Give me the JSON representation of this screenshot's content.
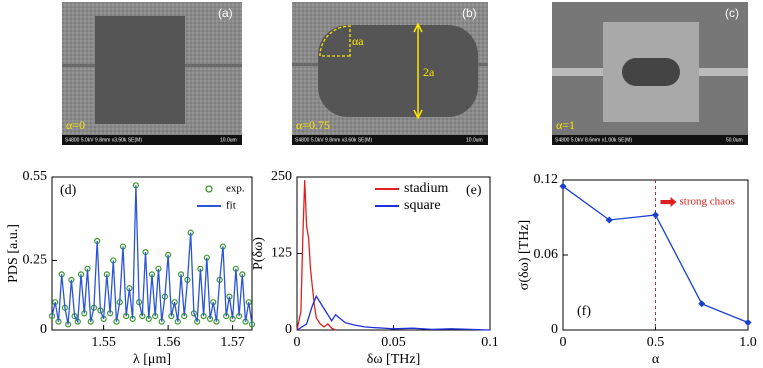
{
  "images": [
    {
      "label": "(a)",
      "caption": "α=0",
      "info": "S4800 5.0kV 9.8mm x3.50k SE(M)",
      "scale": "10.0um"
    },
    {
      "label": "(b)",
      "caption": "α=0.75",
      "info": "S4800 5.0kV 9.8mm x3.60k SE(M)",
      "scale": "10.0um",
      "annotations": [
        "αa",
        "2a"
      ]
    },
    {
      "label": "(c)",
      "caption": "α=1",
      "info": "S4800 5.0kV 8.6mm x1.00k SE(M)",
      "scale": "50.0um"
    }
  ],
  "chart_data": [
    {
      "type": "line",
      "panel_label": "(d)",
      "xlabel": "λ [μm]",
      "ylabel": "PDS [a.u.]",
      "xlim": [
        1.542,
        1.573
      ],
      "xticks": [
        1.55,
        1.56,
        1.57
      ],
      "ylim": [
        0,
        0.55
      ],
      "yticks": [
        0,
        0.25,
        0.55
      ],
      "legend": "upper right",
      "x": [
        1.542,
        1.5425,
        1.543,
        1.5435,
        1.544,
        1.5445,
        1.545,
        1.5455,
        1.546,
        1.5465,
        1.547,
        1.5475,
        1.548,
        1.5485,
        1.549,
        1.5495,
        1.55,
        1.5505,
        1.551,
        1.5515,
        1.552,
        1.5525,
        1.553,
        1.5535,
        1.554,
        1.5545,
        1.555,
        1.5555,
        1.556,
        1.5565,
        1.557,
        1.5575,
        1.558,
        1.5585,
        1.559,
        1.5595,
        1.56,
        1.5605,
        1.561,
        1.5615,
        1.562,
        1.5625,
        1.563,
        1.5635,
        1.564,
        1.5645,
        1.565,
        1.5655,
        1.566,
        1.5665,
        1.567,
        1.5675,
        1.568,
        1.5685,
        1.569,
        1.5695,
        1.57,
        1.5705,
        1.571,
        1.5715,
        1.572,
        1.5725,
        1.573
      ],
      "series": [
        {
          "name": "exp.",
          "color": "#3a9a2a",
          "mode": "markers",
          "values": [
            0.05,
            0.1,
            0.03,
            0.2,
            0.08,
            0.02,
            0.18,
            0.05,
            0.03,
            0.2,
            0.06,
            0.22,
            0.03,
            0.08,
            0.32,
            0.07,
            0.04,
            0.2,
            0.06,
            0.25,
            0.03,
            0.1,
            0.3,
            0.05,
            0.15,
            0.04,
            0.52,
            0.1,
            0.05,
            0.28,
            0.04,
            0.2,
            0.05,
            0.22,
            0.03,
            0.12,
            0.27,
            0.05,
            0.1,
            0.03,
            0.2,
            0.05,
            0.18,
            0.35,
            0.06,
            0.03,
            0.22,
            0.05,
            0.26,
            0.04,
            0.1,
            0.03,
            0.18,
            0.3,
            0.05,
            0.12,
            0.04,
            0.22,
            0.05,
            0.2,
            0.03,
            0.1,
            0.02
          ]
        },
        {
          "name": "fit",
          "color": "#2b55d6",
          "mode": "lines",
          "values": [
            0.05,
            0.1,
            0.03,
            0.2,
            0.08,
            0.02,
            0.18,
            0.05,
            0.03,
            0.2,
            0.06,
            0.22,
            0.03,
            0.08,
            0.32,
            0.07,
            0.04,
            0.2,
            0.06,
            0.25,
            0.03,
            0.1,
            0.3,
            0.05,
            0.15,
            0.04,
            0.52,
            0.1,
            0.05,
            0.28,
            0.04,
            0.2,
            0.05,
            0.22,
            0.03,
            0.12,
            0.27,
            0.05,
            0.1,
            0.03,
            0.2,
            0.05,
            0.18,
            0.35,
            0.06,
            0.03,
            0.22,
            0.05,
            0.26,
            0.04,
            0.1,
            0.03,
            0.18,
            0.3,
            0.05,
            0.12,
            0.04,
            0.22,
            0.05,
            0.2,
            0.03,
            0.1,
            0.02
          ]
        }
      ]
    },
    {
      "type": "line",
      "panel_label": "(e)",
      "xlabel": "δω [THz]",
      "ylabel": "P(δω)",
      "xlim": [
        0,
        0.1
      ],
      "xticks": [
        0,
        0.05,
        0.1
      ],
      "ylim": [
        0,
        250
      ],
      "yticks": [
        0,
        125,
        250
      ],
      "legend": "upper right",
      "series": [
        {
          "name": "stadium",
          "color": "#e02020",
          "mode": "lines",
          "x": [
            0,
            0.002,
            0.003,
            0.004,
            0.005,
            0.006,
            0.007,
            0.008,
            0.009,
            0.01,
            0.012,
            0.014,
            0.016,
            0.018,
            0.02
          ],
          "values": [
            0,
            30,
            150,
            245,
            170,
            150,
            100,
            70,
            40,
            20,
            10,
            5,
            10,
            3,
            0
          ]
        },
        {
          "name": "square",
          "color": "#2030e0",
          "mode": "lines",
          "x": [
            0,
            0.005,
            0.008,
            0.01,
            0.012,
            0.015,
            0.018,
            0.02,
            0.025,
            0.03,
            0.035,
            0.04,
            0.05,
            0.06,
            0.07,
            0.08,
            0.09,
            0.1
          ],
          "values": [
            0,
            10,
            40,
            55,
            45,
            30,
            15,
            25,
            12,
            8,
            5,
            4,
            2,
            3,
            1,
            2,
            1,
            0
          ]
        }
      ]
    },
    {
      "type": "line",
      "panel_label": "(f)",
      "xlabel": "α",
      "ylabel": "σ(δω) [THz]",
      "xlim": [
        0,
        1
      ],
      "xticks": [
        0,
        0.5,
        {
          "value": 1,
          "label": "1.0"
        }
      ],
      "ylim": [
        0,
        0.12
      ],
      "yticks": [
        0,
        0.06,
        0.12
      ],
      "vline": 0.5,
      "annotation": "strong chaos",
      "x": [
        0,
        0.25,
        0.5,
        0.75,
        1
      ],
      "series": [
        {
          "color": "#1a3fd0",
          "mode": "lines+markers",
          "values": [
            0.115,
            0.088,
            0.092,
            0.021,
            0.006
          ]
        }
      ]
    }
  ]
}
